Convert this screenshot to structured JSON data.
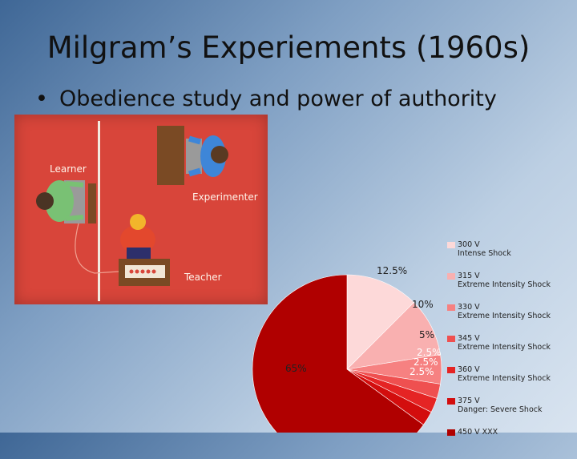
{
  "slide": {
    "title": "Milgram’s Experiements (1960s)",
    "bullet_glyph": "•",
    "bullet": "Obedience study and power of authority"
  },
  "illustration": {
    "learner_label": "Learner",
    "experimenter_label": "Experimenter",
    "teacher_label": "Teacher",
    "colors": {
      "background": "#d8453a",
      "desk": "#7a4a24",
      "experimenter_shirt": "#3e86d8",
      "learner_shirt": "#79c174",
      "teacher_shirt": "#e3482d",
      "hair_experimenter": "#5a3a22",
      "hair_teacher": "#f2b52b"
    }
  },
  "chart_data": {
    "type": "pie",
    "slices": [
      {
        "label": "300 V\nIntense Shock",
        "value": 12.5,
        "value_label": "12.5%",
        "color": "#fdd9d9"
      },
      {
        "label": "315 V\nExtreme Intensity Shock",
        "value": 10,
        "value_label": "10%",
        "color": "#f9b0b0"
      },
      {
        "label": "330 V\nExtreme Intensity Shock",
        "value": 5,
        "value_label": "5%",
        "color": "#f68181"
      },
      {
        "label": "345 V\nExtreme Intensity Shock",
        "value": 2.5,
        "value_label": "2.5%",
        "color": "#ef5050"
      },
      {
        "label": "360 V\nExtreme Intensity Shock",
        "value": 2.5,
        "value_label": "2.5%",
        "color": "#e52424"
      },
      {
        "label": "375 V\nDanger: Severe Shock",
        "value": 2.5,
        "value_label": "2.5%",
        "color": "#d30d0d"
      },
      {
        "label": "450 V XXX",
        "value": 65,
        "value_label": "65%",
        "color": "#b00000"
      }
    ],
    "start_angle_deg": 0,
    "legend_position": "right"
  }
}
